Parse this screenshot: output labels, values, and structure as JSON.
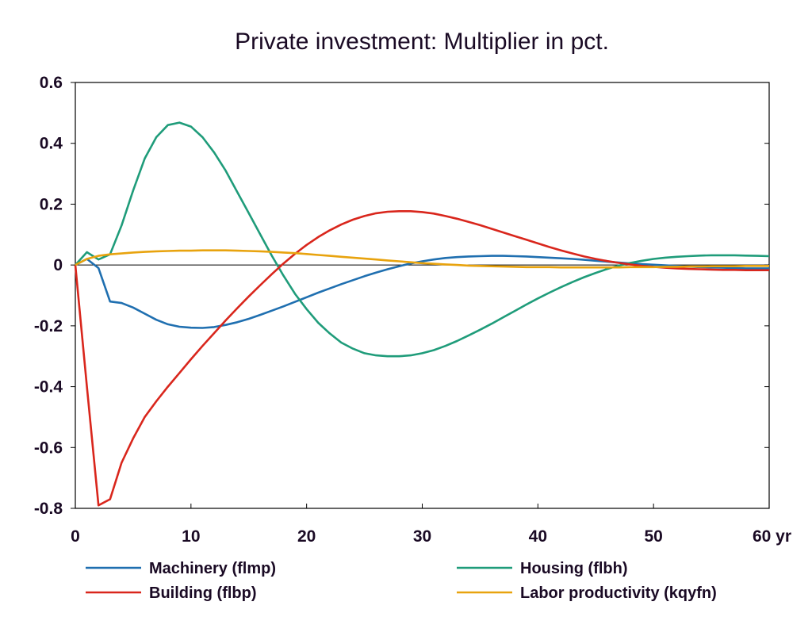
{
  "chart_data": {
    "type": "line",
    "title": "Private investment: Multiplier in pct.",
    "xlabel": "",
    "ylabel": "",
    "xlim": [
      0,
      60
    ],
    "ylim": [
      -0.8,
      0.6
    ],
    "x_ticks": [
      "0",
      "10",
      "20",
      "30",
      "40",
      "50",
      "60 yr"
    ],
    "x_tick_values": [
      0,
      10,
      20,
      30,
      40,
      50,
      60
    ],
    "y_ticks": [
      "0.6",
      "0.4",
      "0.2",
      "0",
      "-0.2",
      "-0.4",
      "-0.6",
      "-0.8"
    ],
    "y_tick_values": [
      0.6,
      0.4,
      0.2,
      0,
      -0.2,
      -0.4,
      -0.6,
      -0.8
    ],
    "grid": false,
    "zero_line": true,
    "legend_position": "bottom",
    "x": [
      0,
      1,
      2,
      3,
      4,
      5,
      6,
      7,
      8,
      9,
      10,
      11,
      12,
      13,
      14,
      15,
      16,
      17,
      18,
      19,
      20,
      21,
      22,
      23,
      24,
      25,
      26,
      27,
      28,
      29,
      30,
      31,
      32,
      33,
      34,
      35,
      36,
      37,
      38,
      39,
      40,
      41,
      42,
      43,
      44,
      45,
      46,
      47,
      48,
      49,
      50,
      51,
      52,
      53,
      54,
      55,
      56,
      57,
      58,
      59,
      60
    ],
    "series": [
      {
        "name": "Machinery (flmp)",
        "color": "#1f6fb0",
        "values": [
          0,
          0.02,
          -0.01,
          -0.12,
          -0.125,
          -0.14,
          -0.16,
          -0.18,
          -0.195,
          -0.203,
          -0.206,
          -0.207,
          -0.204,
          -0.197,
          -0.188,
          -0.177,
          -0.164,
          -0.15,
          -0.136,
          -0.121,
          -0.106,
          -0.091,
          -0.077,
          -0.063,
          -0.05,
          -0.037,
          -0.025,
          -0.014,
          -0.004,
          0.005,
          0.012,
          0.018,
          0.023,
          0.026,
          0.028,
          0.029,
          0.03,
          0.03,
          0.029,
          0.028,
          0.026,
          0.024,
          0.022,
          0.02,
          0.017,
          0.014,
          0.011,
          0.008,
          0.005,
          0.003,
          0.001,
          -0.001,
          -0.003,
          -0.005,
          -0.007,
          -0.008,
          -0.009,
          -0.01,
          -0.011,
          -0.011,
          -0.011
        ]
      },
      {
        "name": "Housing (flbh)",
        "color": "#1f9c7a",
        "values": [
          0,
          0.042,
          0.018,
          0.035,
          0.13,
          0.245,
          0.35,
          0.42,
          0.46,
          0.468,
          0.455,
          0.42,
          0.37,
          0.31,
          0.24,
          0.17,
          0.1,
          0.03,
          -0.035,
          -0.095,
          -0.145,
          -0.19,
          -0.225,
          -0.255,
          -0.275,
          -0.29,
          -0.297,
          -0.3,
          -0.3,
          -0.297,
          -0.29,
          -0.28,
          -0.266,
          -0.25,
          -0.232,
          -0.213,
          -0.193,
          -0.172,
          -0.151,
          -0.13,
          -0.11,
          -0.091,
          -0.073,
          -0.056,
          -0.04,
          -0.026,
          -0.013,
          -0.002,
          0.007,
          0.014,
          0.02,
          0.024,
          0.027,
          0.029,
          0.031,
          0.032,
          0.032,
          0.032,
          0.031,
          0.03,
          0.029
        ]
      },
      {
        "name": "Building (flbp)",
        "color": "#d9261c",
        "values": [
          0,
          -0.4,
          -0.79,
          -0.77,
          -0.65,
          -0.57,
          -0.5,
          -0.448,
          -0.4,
          -0.355,
          -0.31,
          -0.266,
          -0.224,
          -0.182,
          -0.142,
          -0.103,
          -0.066,
          -0.03,
          0.005,
          0.037,
          0.066,
          0.092,
          0.114,
          0.133,
          0.149,
          0.161,
          0.17,
          0.175,
          0.177,
          0.177,
          0.174,
          0.169,
          0.161,
          0.152,
          0.142,
          0.131,
          0.119,
          0.107,
          0.095,
          0.083,
          0.071,
          0.059,
          0.048,
          0.038,
          0.028,
          0.02,
          0.013,
          0.007,
          0.002,
          -0.003,
          -0.006,
          -0.009,
          -0.011,
          -0.013,
          -0.014,
          -0.015,
          -0.016,
          -0.016,
          -0.017,
          -0.017,
          -0.017
        ]
      },
      {
        "name": "Labor productivity (kqyfn)",
        "color": "#e8a30e",
        "values": [
          0,
          0.02,
          0.03,
          0.035,
          0.038,
          0.041,
          0.043,
          0.045,
          0.046,
          0.047,
          0.047,
          0.048,
          0.048,
          0.048,
          0.047,
          0.046,
          0.045,
          0.043,
          0.041,
          0.039,
          0.036,
          0.033,
          0.03,
          0.027,
          0.024,
          0.021,
          0.018,
          0.015,
          0.012,
          0.009,
          0.006,
          0.004,
          0.002,
          0,
          -0.002,
          -0.003,
          -0.004,
          -0.005,
          -0.006,
          -0.007,
          -0.007,
          -0.007,
          -0.008,
          -0.008,
          -0.008,
          -0.008,
          -0.008,
          -0.008,
          -0.007,
          -0.007,
          -0.007,
          -0.006,
          -0.006,
          -0.005,
          -0.005,
          -0.004,
          -0.004,
          -0.004,
          -0.003,
          -0.003,
          -0.003
        ]
      }
    ]
  }
}
